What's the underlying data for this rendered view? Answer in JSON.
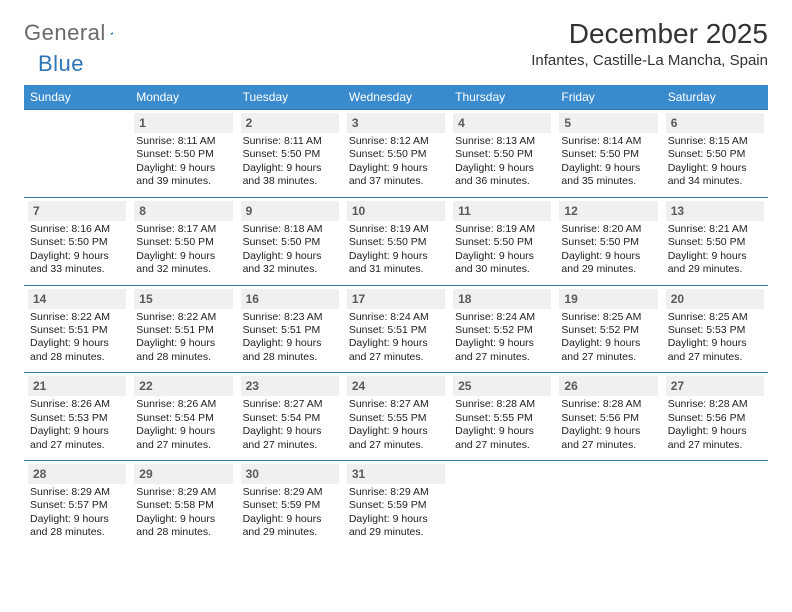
{
  "brand": {
    "part1": "General",
    "part2": "Blue"
  },
  "title": "December 2025",
  "location": "Infantes, Castille-La Mancha, Spain",
  "colors": {
    "header_bg": "#3a8bce",
    "header_text": "#ffffff",
    "daynum_bg": "#eef0f1",
    "daynum_text": "#5a5a5a",
    "divider": "#3a78a8",
    "brand_gray": "#6a6a6a",
    "brand_blue": "#2f74b5",
    "text": "#333333",
    "page_bg": "#ffffff"
  },
  "typography": {
    "title_fontsize": 28,
    "location_fontsize": 15,
    "dow_fontsize": 12,
    "daynum_fontsize": 12,
    "detail_fontsize": 10.5
  },
  "dow": [
    "Sunday",
    "Monday",
    "Tuesday",
    "Wednesday",
    "Thursday",
    "Friday",
    "Saturday"
  ],
  "weeks": [
    [
      null,
      {
        "n": "1",
        "sr": "8:11 AM",
        "ss": "5:50 PM",
        "dl": "9 hours and 39 minutes."
      },
      {
        "n": "2",
        "sr": "8:11 AM",
        "ss": "5:50 PM",
        "dl": "9 hours and 38 minutes."
      },
      {
        "n": "3",
        "sr": "8:12 AM",
        "ss": "5:50 PM",
        "dl": "9 hours and 37 minutes."
      },
      {
        "n": "4",
        "sr": "8:13 AM",
        "ss": "5:50 PM",
        "dl": "9 hours and 36 minutes."
      },
      {
        "n": "5",
        "sr": "8:14 AM",
        "ss": "5:50 PM",
        "dl": "9 hours and 35 minutes."
      },
      {
        "n": "6",
        "sr": "8:15 AM",
        "ss": "5:50 PM",
        "dl": "9 hours and 34 minutes."
      }
    ],
    [
      {
        "n": "7",
        "sr": "8:16 AM",
        "ss": "5:50 PM",
        "dl": "9 hours and 33 minutes."
      },
      {
        "n": "8",
        "sr": "8:17 AM",
        "ss": "5:50 PM",
        "dl": "9 hours and 32 minutes."
      },
      {
        "n": "9",
        "sr": "8:18 AM",
        "ss": "5:50 PM",
        "dl": "9 hours and 32 minutes."
      },
      {
        "n": "10",
        "sr": "8:19 AM",
        "ss": "5:50 PM",
        "dl": "9 hours and 31 minutes."
      },
      {
        "n": "11",
        "sr": "8:19 AM",
        "ss": "5:50 PM",
        "dl": "9 hours and 30 minutes."
      },
      {
        "n": "12",
        "sr": "8:20 AM",
        "ss": "5:50 PM",
        "dl": "9 hours and 29 minutes."
      },
      {
        "n": "13",
        "sr": "8:21 AM",
        "ss": "5:50 PM",
        "dl": "9 hours and 29 minutes."
      }
    ],
    [
      {
        "n": "14",
        "sr": "8:22 AM",
        "ss": "5:51 PM",
        "dl": "9 hours and 28 minutes."
      },
      {
        "n": "15",
        "sr": "8:22 AM",
        "ss": "5:51 PM",
        "dl": "9 hours and 28 minutes."
      },
      {
        "n": "16",
        "sr": "8:23 AM",
        "ss": "5:51 PM",
        "dl": "9 hours and 28 minutes."
      },
      {
        "n": "17",
        "sr": "8:24 AM",
        "ss": "5:51 PM",
        "dl": "9 hours and 27 minutes."
      },
      {
        "n": "18",
        "sr": "8:24 AM",
        "ss": "5:52 PM",
        "dl": "9 hours and 27 minutes."
      },
      {
        "n": "19",
        "sr": "8:25 AM",
        "ss": "5:52 PM",
        "dl": "9 hours and 27 minutes."
      },
      {
        "n": "20",
        "sr": "8:25 AM",
        "ss": "5:53 PM",
        "dl": "9 hours and 27 minutes."
      }
    ],
    [
      {
        "n": "21",
        "sr": "8:26 AM",
        "ss": "5:53 PM",
        "dl": "9 hours and 27 minutes."
      },
      {
        "n": "22",
        "sr": "8:26 AM",
        "ss": "5:54 PM",
        "dl": "9 hours and 27 minutes."
      },
      {
        "n": "23",
        "sr": "8:27 AM",
        "ss": "5:54 PM",
        "dl": "9 hours and 27 minutes."
      },
      {
        "n": "24",
        "sr": "8:27 AM",
        "ss": "5:55 PM",
        "dl": "9 hours and 27 minutes."
      },
      {
        "n": "25",
        "sr": "8:28 AM",
        "ss": "5:55 PM",
        "dl": "9 hours and 27 minutes."
      },
      {
        "n": "26",
        "sr": "8:28 AM",
        "ss": "5:56 PM",
        "dl": "9 hours and 27 minutes."
      },
      {
        "n": "27",
        "sr": "8:28 AM",
        "ss": "5:56 PM",
        "dl": "9 hours and 27 minutes."
      }
    ],
    [
      {
        "n": "28",
        "sr": "8:29 AM",
        "ss": "5:57 PM",
        "dl": "9 hours and 28 minutes."
      },
      {
        "n": "29",
        "sr": "8:29 AM",
        "ss": "5:58 PM",
        "dl": "9 hours and 28 minutes."
      },
      {
        "n": "30",
        "sr": "8:29 AM",
        "ss": "5:59 PM",
        "dl": "9 hours and 29 minutes."
      },
      {
        "n": "31",
        "sr": "8:29 AM",
        "ss": "5:59 PM",
        "dl": "9 hours and 29 minutes."
      },
      null,
      null,
      null
    ]
  ],
  "labels": {
    "sunrise": "Sunrise: ",
    "sunset": "Sunset: ",
    "daylight": "Daylight: "
  }
}
